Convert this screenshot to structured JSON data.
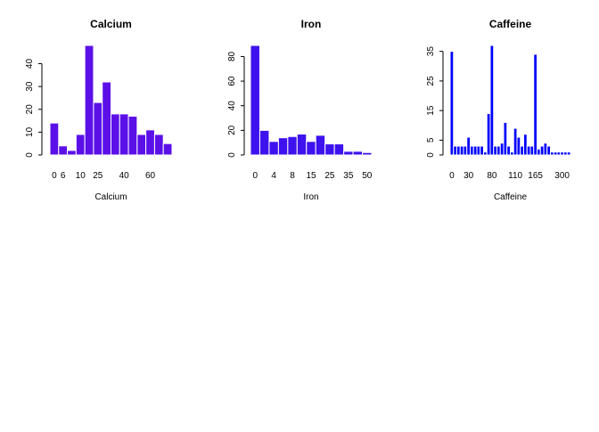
{
  "chart_data": [
    {
      "type": "bar",
      "title": "Calcium",
      "xlabel": "Calcium",
      "ylabel": "",
      "color": "#5B10E8",
      "ylim": [
        0,
        48
      ],
      "yticks": [
        0,
        10,
        20,
        30,
        40
      ],
      "xtick_labels": [
        "0",
        "6",
        "10",
        "25",
        "40",
        "60"
      ],
      "values": [
        14,
        4,
        2,
        9,
        48,
        23,
        32,
        18,
        18,
        17,
        9,
        11,
        9,
        5
      ],
      "xtick_positions": [
        0.5,
        1.5,
        3.5,
        5.5,
        8.5,
        11.5
      ]
    },
    {
      "type": "bar",
      "title": "Iron",
      "xlabel": "Iron",
      "ylabel": "",
      "color": "#3E12EE",
      "ylim": [
        0,
        89
      ],
      "yticks": [
        0,
        20,
        40,
        60,
        80
      ],
      "xtick_labels": [
        "0",
        "4",
        "8",
        "15",
        "25",
        "35",
        "50"
      ],
      "values": [
        89,
        20,
        11,
        14,
        15,
        17,
        11,
        16,
        9,
        9,
        3,
        3,
        2
      ],
      "xtick_positions": [
        0.5,
        2.5,
        4.5,
        6.5,
        8.5,
        10.5,
        12.5
      ]
    },
    {
      "type": "bar",
      "title": "Caffeine",
      "xlabel": "Caffeine",
      "ylabel": "",
      "color": "#0000FF",
      "ylim": [
        0,
        37
      ],
      "yticks": [
        0,
        5,
        15,
        25,
        35
      ],
      "xtick_labels": [
        "0",
        "30",
        "80",
        "110",
        "165",
        "300"
      ],
      "values": [
        35,
        3,
        3,
        3,
        3,
        6,
        3,
        3,
        3,
        3,
        1,
        14,
        37,
        3,
        3,
        4,
        11,
        3,
        1,
        9,
        6,
        3,
        7,
        3,
        3,
        34,
        2,
        3,
        4,
        3,
        1,
        1,
        1,
        1,
        1,
        1
      ],
      "xtick_positions": [
        0.5,
        5.5,
        12.5,
        19.5,
        25.5,
        33.5
      ]
    }
  ]
}
